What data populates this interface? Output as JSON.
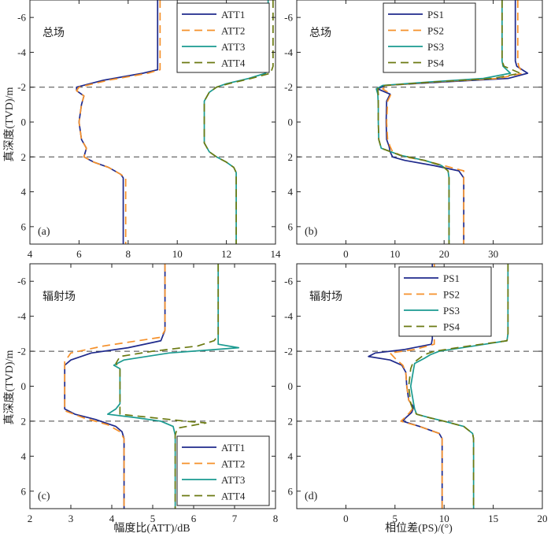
{
  "figure": {
    "ylabel": "真深度(TVD)/m",
    "xlabel_left": "幅度比(ATT)/dB",
    "xlabel_right": "相位差(PS)/(°)"
  },
  "colors": {
    "s1": "#1f2a8c",
    "s2": "#f5902a",
    "s3": "#1a9a90",
    "s4": "#6b7a12",
    "dashed_line": "#444444"
  },
  "chart_data": [
    {
      "id": "a",
      "type": "line",
      "panel_label": "(a)",
      "title": "总场",
      "xlabel": "",
      "ylabel": "真深度(TVD)/m",
      "xlim": [
        4,
        14
      ],
      "ylim": [
        -7,
        7
      ],
      "y_inverted": true,
      "xticks": [
        4,
        6,
        8,
        10,
        12,
        14
      ],
      "yticks": [
        -6,
        -4,
        -2,
        0,
        2,
        4,
        6
      ],
      "ytick_labels": [
        "-6",
        "-4",
        "-2",
        "0",
        "2",
        "4",
        "6"
      ],
      "show_xtick_labels": true,
      "hlines": [
        -2,
        2
      ],
      "legend_position": "top-right",
      "series": [
        {
          "name": "ATT1",
          "style": "solid",
          "color_key": "s1",
          "y": [
            -7,
            -3.5,
            -3.0,
            -2.8,
            -2.4,
            -2.0,
            -1.8,
            -1.5,
            -1.0,
            0,
            1.0,
            1.5,
            2.0,
            2.3,
            2.6,
            3.0,
            3.2,
            3.5,
            7
          ],
          "x": [
            9.2,
            9.2,
            9.2,
            8.6,
            7.0,
            5.9,
            5.9,
            6.2,
            6.1,
            6.0,
            6.1,
            6.3,
            6.2,
            6.6,
            7.2,
            7.7,
            7.8,
            7.8,
            7.8
          ]
        },
        {
          "name": "ATT2",
          "style": "dashed",
          "color_key": "s2",
          "y": [
            -7,
            -3.5,
            -3.0,
            -2.8,
            -2.4,
            -2.0,
            -1.8,
            -1.5,
            -1.0,
            0,
            1.0,
            1.5,
            2.0,
            2.3,
            2.6,
            3.0,
            3.2,
            3.5,
            7
          ],
          "x": [
            9.3,
            9.3,
            9.3,
            8.8,
            7.2,
            6.0,
            5.9,
            6.2,
            6.1,
            6.0,
            6.1,
            6.3,
            6.2,
            6.6,
            7.2,
            7.7,
            7.9,
            7.9,
            7.9
          ]
        },
        {
          "name": "ATT3",
          "style": "solid",
          "color_key": "s3",
          "y": [
            -7,
            -3.2,
            -2.8,
            -2.5,
            -2.2,
            -2.0,
            -1.7,
            -1.2,
            -0.5,
            0,
            0.5,
            1.2,
            1.7,
            2.0,
            2.3,
            2.6,
            2.9,
            3.2,
            7
          ],
          "x": [
            13.7,
            13.7,
            13.6,
            12.9,
            12.0,
            11.6,
            11.3,
            11.1,
            11.1,
            11.1,
            11.1,
            11.1,
            11.3,
            11.6,
            12.0,
            12.3,
            12.4,
            12.4,
            12.4
          ]
        },
        {
          "name": "ATT4",
          "style": "dashed",
          "color_key": "s4",
          "y": [
            -7,
            -3.2,
            -2.8,
            -2.5,
            -2.2,
            -2.0,
            -1.7,
            -1.2,
            -0.5,
            0,
            0.5,
            1.2,
            1.7,
            2.0,
            2.3,
            2.6,
            2.9,
            3.2,
            7
          ],
          "x": [
            13.9,
            13.9,
            13.8,
            13.0,
            12.1,
            11.6,
            11.3,
            11.1,
            11.1,
            11.1,
            11.1,
            11.1,
            11.3,
            11.6,
            12.0,
            12.3,
            12.4,
            12.4,
            12.4
          ]
        }
      ]
    },
    {
      "id": "b",
      "type": "line",
      "panel_label": "(b)",
      "title": "总场",
      "xlabel": "",
      "ylabel": "",
      "xlim": [
        -10,
        40
      ],
      "ylim": [
        -7,
        7
      ],
      "y_inverted": true,
      "xticks": [
        0,
        10,
        20,
        30
      ],
      "yticks": [
        -6,
        -4,
        -2,
        0,
        2,
        4,
        6
      ],
      "ytick_labels": [
        "-6",
        "-4",
        "-2",
        "0",
        "2",
        "4",
        "6"
      ],
      "show_xtick_labels": true,
      "hlines": [
        -2,
        2
      ],
      "legend_position": "top-left",
      "series": [
        {
          "name": "PS1",
          "style": "solid",
          "color_key": "s1",
          "y": [
            -7,
            -3.5,
            -3.2,
            -2.8,
            -2.5,
            -2.3,
            -2.1,
            -1.9,
            -1.6,
            -1.2,
            0,
            1.0,
            1.4,
            1.7,
            2.0,
            2.2,
            2.5,
            2.8,
            3.2,
            7
          ],
          "x": [
            34.5,
            34.5,
            34.8,
            37.0,
            33.0,
            20.0,
            8.0,
            6.5,
            9.0,
            8.3,
            8.2,
            8.3,
            8.8,
            9.0,
            9.5,
            12.0,
            18.0,
            23.0,
            24.0,
            24.0
          ]
        },
        {
          "name": "PS2",
          "style": "dashed",
          "color_key": "s2",
          "y": [
            -7,
            -3.5,
            -3.2,
            -2.8,
            -2.5,
            -2.3,
            -2.1,
            -1.9,
            -1.6,
            -1.2,
            0,
            1.0,
            1.4,
            1.7,
            2.0,
            2.2,
            2.5,
            2.8,
            3.2,
            7
          ],
          "x": [
            35.0,
            35.0,
            35.2,
            36.0,
            31.0,
            18.0,
            8.5,
            7.5,
            9.2,
            8.5,
            8.3,
            8.5,
            9.0,
            9.5,
            12.0,
            16.0,
            20.0,
            24.0,
            24.0,
            24.0
          ]
        },
        {
          "name": "PS3",
          "style": "solid",
          "color_key": "s3",
          "y": [
            -7,
            -3.5,
            -3.2,
            -2.8,
            -2.5,
            -2.3,
            -2.1,
            -1.9,
            -1.6,
            -1.0,
            0,
            1.0,
            1.5,
            1.9,
            2.2,
            2.5,
            2.8,
            3.2,
            7
          ],
          "x": [
            31.8,
            31.8,
            32.0,
            33.5,
            28.0,
            17.0,
            7.5,
            6.2,
            6.5,
            6.6,
            6.6,
            6.7,
            7.2,
            11.0,
            16.0,
            19.5,
            20.8,
            21.0,
            21.0
          ]
        },
        {
          "name": "PS4",
          "style": "dashed",
          "color_key": "s4",
          "y": [
            -7,
            -3.5,
            -3.2,
            -2.8,
            -2.5,
            -2.3,
            -2.1,
            -1.9,
            -1.6,
            -1.0,
            0,
            1.0,
            1.5,
            1.9,
            2.2,
            2.5,
            2.8,
            3.2,
            7
          ],
          "x": [
            31.8,
            31.8,
            32.2,
            35.5,
            30.0,
            18.0,
            8.0,
            6.5,
            6.6,
            6.6,
            6.6,
            6.7,
            7.2,
            11.0,
            16.0,
            19.5,
            20.8,
            21.0,
            21.0
          ]
        }
      ]
    },
    {
      "id": "c",
      "type": "line",
      "panel_label": "(c)",
      "title": "辐射场",
      "xlabel": "幅度比(ATT)/dB",
      "ylabel": "真深度(TVD)/m",
      "xlim": [
        2,
        8
      ],
      "ylim": [
        -7,
        7
      ],
      "y_inverted": true,
      "xticks": [
        2,
        3,
        4,
        5,
        6,
        7,
        8
      ],
      "yticks": [
        -6,
        -4,
        -2,
        0,
        2,
        4,
        6
      ],
      "ytick_labels": [
        "-6",
        "-4",
        "-2",
        "0",
        "2",
        "4",
        "6"
      ],
      "show_xtick_labels": true,
      "hlines": [
        -2,
        2
      ],
      "legend_position": "bottom-right",
      "series": [
        {
          "name": "ATT1",
          "style": "solid",
          "color_key": "s1",
          "y": [
            -7,
            -3.2,
            -2.6,
            -2.2,
            -1.9,
            -1.5,
            -1.2,
            -1.0,
            0,
            1.0,
            1.3,
            1.6,
            1.9,
            2.3,
            2.6,
            3.0,
            7
          ],
          "x": [
            5.3,
            5.3,
            5.2,
            4.4,
            3.5,
            3.0,
            2.85,
            2.85,
            2.85,
            2.85,
            2.85,
            3.1,
            3.6,
            4.1,
            4.25,
            4.3,
            4.3
          ]
        },
        {
          "name": "ATT2",
          "style": "dashed",
          "color_key": "s2",
          "y": [
            -7,
            -3.2,
            -2.8,
            -2.3,
            -1.9,
            -1.4,
            -1.1,
            0,
            1.1,
            1.4,
            1.8,
            2.2,
            2.6,
            3.0,
            7
          ],
          "x": [
            5.3,
            5.3,
            5.2,
            3.8,
            3.0,
            2.85,
            2.85,
            2.85,
            2.85,
            2.85,
            3.3,
            3.9,
            4.2,
            4.3,
            4.3
          ]
        },
        {
          "name": "ATT3",
          "style": "solid",
          "color_key": "s3",
          "y": [
            -7,
            -2.7,
            -2.4,
            -2.2,
            -1.9,
            -1.5,
            -1.2,
            -1.0,
            0,
            1.0,
            1.3,
            1.6,
            1.8,
            2.0,
            2.3,
            2.8,
            7
          ],
          "x": [
            6.6,
            6.6,
            6.6,
            7.1,
            5.4,
            4.3,
            4.05,
            4.2,
            4.2,
            4.2,
            4.1,
            3.9,
            4.6,
            5.2,
            5.5,
            5.55,
            5.55
          ]
        },
        {
          "name": "ATT4",
          "style": "dashed",
          "color_key": "s4",
          "y": [
            -7,
            -2.9,
            -2.6,
            -2.3,
            -2.0,
            -1.7,
            -1.3,
            -1.0,
            0,
            1.0,
            1.3,
            1.6,
            1.8,
            2.0,
            2.1,
            2.4,
            2.8,
            7
          ],
          "x": [
            6.6,
            6.6,
            6.5,
            6.1,
            5.0,
            4.2,
            4.1,
            4.2,
            4.2,
            4.2,
            4.2,
            4.2,
            5.0,
            5.8,
            6.3,
            5.6,
            5.55,
            5.55
          ]
        }
      ]
    },
    {
      "id": "d",
      "type": "line",
      "panel_label": "(d)",
      "title": "辐射场",
      "xlabel": "相位差(PS)/(°)",
      "ylabel": "",
      "xlim": [
        -5,
        20
      ],
      "ylim": [
        -7,
        7
      ],
      "y_inverted": true,
      "xticks": [
        0,
        5,
        10,
        15,
        20
      ],
      "yticks": [
        -6,
        -4,
        -2,
        0,
        2,
        4,
        6
      ],
      "ytick_labels": [
        "-6",
        "-4",
        "-2",
        "0",
        "2",
        "4",
        "6"
      ],
      "show_xtick_labels": true,
      "hlines": [
        -2,
        2
      ],
      "legend_position": "top-center",
      "series": [
        {
          "name": "PS1",
          "style": "solid",
          "color_key": "s1",
          "y": [
            -7,
            -2.7,
            -2.4,
            -2.1,
            -1.9,
            -1.7,
            -1.5,
            -1.2,
            -0.8,
            0,
            0.8,
            1.2,
            1.5,
            1.8,
            2.0,
            2.3,
            2.7,
            3.0,
            7
          ],
          "x": [
            8.8,
            8.8,
            8.7,
            6.0,
            3.0,
            2.3,
            4.5,
            5.7,
            6.1,
            6.2,
            6.4,
            6.9,
            6.7,
            6.1,
            5.8,
            7.5,
            9.5,
            9.8,
            9.8
          ]
        },
        {
          "name": "PS2",
          "style": "dashed",
          "color_key": "s2",
          "y": [
            -7,
            -2.7,
            -2.4,
            -2.1,
            -1.9,
            -1.6,
            -1.2,
            -0.8,
            0,
            0.8,
            1.2,
            1.5,
            1.8,
            2.0,
            2.3,
            2.7,
            3.0,
            7
          ],
          "x": [
            9.0,
            9.0,
            9.0,
            7.0,
            4.5,
            5.0,
            5.8,
            6.1,
            6.2,
            6.4,
            6.9,
            6.5,
            6.0,
            5.6,
            7.5,
            9.5,
            9.8,
            9.8
          ]
        },
        {
          "name": "PS3",
          "style": "solid",
          "color_key": "s3",
          "y": [
            -7,
            -3.0,
            -2.6,
            -2.3,
            -2.0,
            -1.8,
            -1.6,
            -1.3,
            -1.0,
            0,
            1.0,
            1.3,
            1.6,
            1.8,
            2.0,
            2.3,
            2.7,
            3.0,
            7
          ],
          "x": [
            16.5,
            16.5,
            16.4,
            13.0,
            9.5,
            8.6,
            8.0,
            7.0,
            6.9,
            6.6,
            6.9,
            7.0,
            7.2,
            8.5,
            10.0,
            12.0,
            12.9,
            13.0,
            13.0
          ]
        },
        {
          "name": "PS4",
          "style": "dashed",
          "color_key": "s4",
          "y": [
            -7,
            -3.0,
            -2.6,
            -2.3,
            -2.0,
            -1.8,
            -1.6,
            -1.3,
            -1.0,
            0,
            1.0,
            1.3,
            1.6,
            1.8,
            2.0,
            2.3,
            2.7,
            3.0,
            7
          ],
          "x": [
            16.5,
            16.5,
            16.4,
            12.5,
            9.0,
            8.0,
            7.5,
            6.8,
            6.6,
            6.4,
            6.6,
            6.8,
            7.2,
            8.5,
            10.0,
            12.0,
            12.9,
            13.0,
            13.0
          ]
        }
      ]
    }
  ]
}
